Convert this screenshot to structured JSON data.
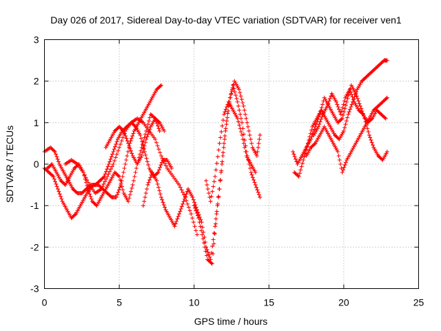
{
  "chart_data": {
    "type": "scatter",
    "title": "Day 026 of 2017, Sidereal Day-to-day VTEC variation (SDTVAR) for receiver ven1",
    "xlabel": "GPS time / hours",
    "ylabel": "SDTVAR / TECUs",
    "xlim": [
      0,
      25
    ],
    "ylim": [
      -3,
      3
    ],
    "xticks": [
      "0",
      "5",
      "10",
      "15",
      "20",
      "25"
    ],
    "yticks": [
      "-3",
      "-2",
      "-1",
      "0",
      "1",
      "2",
      "3"
    ],
    "grid": true,
    "legend": "none",
    "marker": "plus",
    "color": "#ff0000",
    "series": [
      {
        "x": [
          0.0,
          0.4,
          0.7,
          1.0,
          1.3,
          1.6,
          1.9,
          2.2,
          2.5,
          2.8,
          3.1,
          3.4,
          3.7,
          4.0,
          4.3,
          4.6,
          4.9,
          5.2,
          5.5,
          5.8,
          6.1,
          6.4,
          6.7,
          7.0,
          7.3,
          7.6,
          7.9,
          8.2,
          8.5
        ],
        "y": [
          0.3,
          0.4,
          0.3,
          0.0,
          -0.2,
          -0.4,
          -0.6,
          -0.7,
          -0.7,
          -0.6,
          -0.5,
          -0.5,
          -0.4,
          -0.3,
          0.0,
          0.3,
          0.6,
          0.8,
          0.9,
          1.0,
          0.9,
          0.7,
          0.3,
          -0.1,
          -0.3,
          -0.2,
          0.1,
          0.1,
          -0.1
        ]
      },
      {
        "x": [
          0.0,
          0.3,
          0.6,
          0.9,
          1.2,
          1.5,
          1.8,
          2.1,
          2.4,
          2.7,
          3.0,
          3.3,
          3.6,
          3.9,
          4.2,
          4.5,
          4.8,
          5.1,
          5.4,
          5.7,
          6.0,
          6.3,
          6.6,
          6.9,
          7.2,
          7.5,
          7.8
        ],
        "y": [
          -0.1,
          -0.2,
          -0.3,
          -0.6,
          -0.9,
          -1.1,
          -1.3,
          -1.2,
          -1.0,
          -0.8,
          -0.6,
          -0.5,
          -0.5,
          -0.6,
          -0.7,
          -0.8,
          -0.8,
          -0.5,
          0.0,
          0.5,
          0.8,
          1.0,
          1.2,
          1.4,
          1.6,
          1.8,
          1.9
        ]
      },
      {
        "x": [
          0.2,
          0.5,
          0.8,
          1.1,
          1.4,
          1.7,
          2.0,
          2.3,
          2.6,
          2.9,
          3.2,
          3.5,
          3.8,
          4.1,
          4.4,
          4.7,
          5.0,
          5.3,
          5.6,
          5.9,
          6.2,
          6.5,
          6.8,
          7.1,
          7.4,
          7.7
        ],
        "y": [
          -0.1,
          0.0,
          -0.2,
          -0.4,
          -0.5,
          -0.3,
          -0.1,
          0.0,
          -0.2,
          -0.6,
          -0.9,
          -1.0,
          -0.8,
          -0.6,
          -0.4,
          -0.2,
          -0.3,
          -0.7,
          -0.9,
          -0.5,
          0.0,
          0.4,
          0.8,
          1.2,
          1.1,
          0.8
        ]
      },
      {
        "x": [
          1.4,
          1.8,
          2.2,
          2.6,
          3.0,
          3.4,
          3.8,
          4.2,
          4.6,
          5.0,
          5.4,
          5.8,
          6.2,
          6.6,
          7.0,
          7.4,
          7.8,
          8.2,
          8.6,
          9.0,
          9.4,
          9.8,
          10.2
        ],
        "y": [
          0.0,
          0.1,
          0.0,
          -0.2,
          -0.5,
          -0.7,
          -0.6,
          -0.3,
          0.0,
          0.4,
          0.8,
          1.0,
          1.1,
          1.0,
          0.8,
          0.6,
          0.2,
          -0.1,
          -0.3,
          -0.5,
          -0.8,
          -1.2,
          -1.7
        ]
      },
      {
        "x": [
          4.1,
          4.4,
          4.7,
          5.0,
          5.3,
          5.6,
          5.9,
          6.2,
          6.5,
          6.8,
          7.1,
          7.4,
          7.7,
          8.0
        ],
        "y": [
          0.4,
          0.6,
          0.8,
          0.9,
          0.8,
          0.5,
          0.2,
          0.0,
          0.2,
          0.6,
          0.9,
          1.1,
          1.0,
          0.8
        ]
      },
      {
        "x": [
          6.6,
          6.9,
          7.2,
          7.5,
          7.8,
          8.1,
          8.4,
          8.7,
          9.0,
          9.3,
          9.6,
          9.9,
          10.2,
          10.5,
          10.8,
          11.1,
          11.4,
          11.7,
          12.0,
          12.3,
          12.6,
          12.9,
          13.2,
          13.5,
          13.8,
          14.1,
          14.4
        ],
        "y": [
          -1.0,
          -0.5,
          -0.2,
          -0.4,
          -0.8,
          -1.1,
          -1.3,
          -1.5,
          -1.2,
          -0.9,
          -0.6,
          -0.8,
          -1.1,
          -1.4,
          -2.0,
          -2.3,
          -1.5,
          -0.6,
          0.5,
          1.4,
          1.9,
          1.5,
          1.0,
          0.3,
          -0.2,
          -0.5,
          -0.8
        ]
      },
      {
        "x": [
          10.0,
          10.3,
          10.6,
          10.9,
          11.2,
          11.5,
          11.8,
          12.1,
          12.4,
          12.7,
          13.0,
          13.3,
          13.6,
          13.9,
          14.2,
          14.4
        ],
        "y": [
          -1.0,
          -1.3,
          -1.8,
          -2.3,
          -2.4,
          -1.2,
          -0.2,
          0.8,
          1.6,
          2.0,
          1.8,
          1.4,
          0.9,
          0.4,
          0.2,
          0.7
        ]
      },
      {
        "x": [
          10.8,
          11.1,
          11.4,
          11.7,
          12.0,
          12.3,
          12.6,
          12.9,
          13.2,
          13.5,
          13.8,
          14.1
        ],
        "y": [
          -0.4,
          -0.9,
          -0.3,
          0.5,
          1.2,
          1.5,
          1.3,
          1.1,
          0.7,
          0.2,
          0.0,
          -0.2
        ]
      },
      {
        "x": [
          16.6,
          16.9,
          17.2,
          17.5,
          17.8,
          18.1,
          18.4,
          18.7,
          19.0,
          19.3,
          19.6,
          19.9,
          20.2,
          20.5,
          20.8,
          21.1,
          21.4,
          21.7,
          22.0,
          22.3,
          22.6,
          22.9
        ],
        "y": [
          0.3,
          0.0,
          0.2,
          0.4,
          0.6,
          0.9,
          1.2,
          1.6,
          1.4,
          1.2,
          1.0,
          1.1,
          1.5,
          1.9,
          1.7,
          1.4,
          1.1,
          0.7,
          0.4,
          0.2,
          0.1,
          0.3
        ]
      },
      {
        "x": [
          16.7,
          17.0,
          17.3,
          17.6,
          17.9,
          18.2,
          18.5,
          18.8,
          19.1,
          19.4,
          19.7,
          20.0,
          20.3,
          20.6,
          20.9,
          21.2,
          21.5,
          21.8,
          22.1,
          22.4,
          22.7,
          22.9
        ],
        "y": [
          -0.2,
          -0.3,
          0.1,
          0.5,
          0.9,
          1.1,
          1.3,
          1.1,
          0.9,
          0.7,
          0.6,
          0.8,
          1.2,
          1.5,
          1.8,
          2.0,
          2.1,
          2.2,
          2.3,
          2.4,
          2.5,
          2.5
        ]
      },
      {
        "x": [
          17.5,
          17.8,
          18.1,
          18.4,
          18.7,
          19.0,
          19.3,
          19.6,
          19.9,
          20.2,
          20.5,
          20.8,
          21.1,
          21.4,
          21.7,
          22.0,
          22.3,
          22.6,
          22.9
        ],
        "y": [
          0.2,
          0.4,
          0.5,
          0.7,
          0.9,
          0.7,
          0.5,
          0.3,
          -0.2,
          0.1,
          0.3,
          0.5,
          0.7,
          0.9,
          1.1,
          1.3,
          1.4,
          1.5,
          1.6
        ]
      },
      {
        "x": [
          18.0,
          18.3,
          18.6,
          18.9,
          19.2,
          19.5,
          19.8,
          20.1,
          20.4,
          20.7,
          21.0,
          21.3,
          21.6,
          21.9,
          22.2,
          22.5,
          22.8
        ],
        "y": [
          0.7,
          0.9,
          1.2,
          1.4,
          1.7,
          1.5,
          1.2,
          1.6,
          1.8,
          1.5,
          1.3,
          1.2,
          1.0,
          1.1,
          1.3,
          1.2,
          1.1
        ]
      }
    ]
  }
}
